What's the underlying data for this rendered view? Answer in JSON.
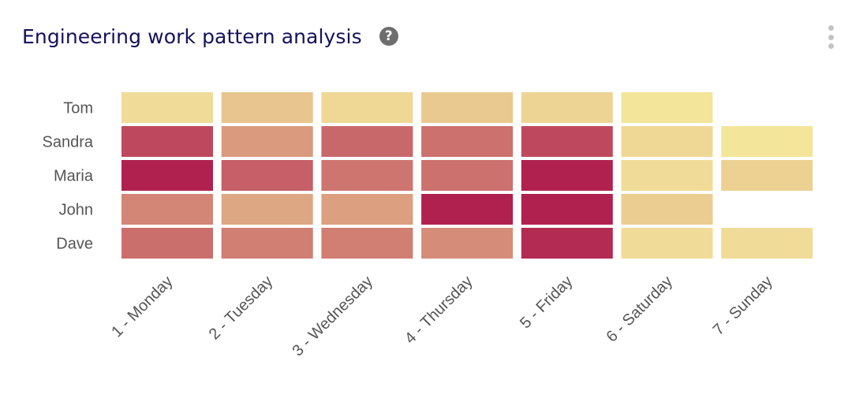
{
  "header": {
    "title": "Engineering work pattern analysis",
    "help_icon": "question-mark-circle-icon",
    "menu_icon": "vertical-ellipsis-icon"
  },
  "chart_data": {
    "type": "heatmap",
    "title": "Engineering work pattern analysis",
    "rows": [
      "Tom",
      "Sandra",
      "Maria",
      "John",
      "Dave"
    ],
    "columns": [
      "1 - Monday",
      "2 - Tuesday",
      "3 - Wednesday",
      "4 - Thursday",
      "5 - Friday",
      "6 - Saturday",
      "7 - Sunday"
    ],
    "values": [
      [
        0.1,
        0.22,
        0.12,
        0.2,
        0.14,
        0.05,
        null
      ],
      [
        0.82,
        0.45,
        0.68,
        0.64,
        0.82,
        0.12,
        0.05
      ],
      [
        1.0,
        0.72,
        0.62,
        0.64,
        1.0,
        0.1,
        0.16
      ],
      [
        0.55,
        0.38,
        0.42,
        1.0,
        1.0,
        0.18,
        null
      ],
      [
        0.65,
        0.58,
        0.58,
        0.52,
        0.96,
        0.1,
        0.1
      ]
    ],
    "color_scale": {
      "low": "#f6ef9f",
      "mid": "#d7907a",
      "high": "#b0214f"
    },
    "legend": "none",
    "grid": false
  }
}
